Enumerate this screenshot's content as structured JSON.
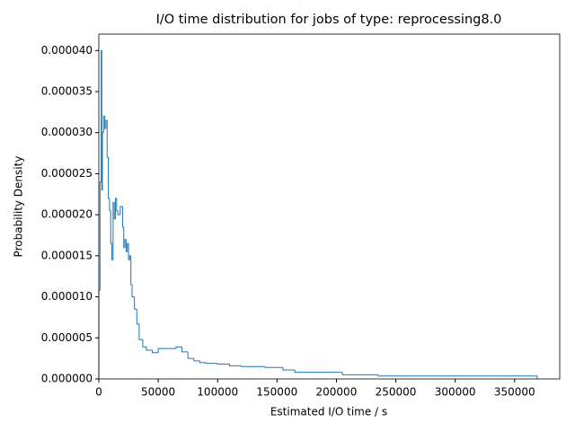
{
  "chart_data": {
    "type": "histogram",
    "title": "I/O time distribution for jobs of type: reprocessing8.0",
    "x_label": "Estimated I/O time / s",
    "y_label": "Probability Density",
    "color": "#1f77b4",
    "bins": [
      0,
      1000,
      2000,
      2500,
      3000,
      4000,
      5000,
      6000,
      7000,
      8000,
      9000,
      10000,
      11000,
      12000,
      13000,
      14000,
      15000,
      16000,
      18000,
      20000,
      21000,
      22000,
      23000,
      24000,
      25000,
      26000,
      27000,
      28000,
      30000,
      32000,
      34000,
      37000,
      40000,
      45000,
      50000,
      55000,
      65000,
      70000,
      75000,
      80000,
      85000,
      90000,
      100000,
      110000,
      120000,
      140000,
      155000,
      165000,
      205000,
      235000,
      369000
    ],
    "values": [
      1.08e-05,
      2.4e-05,
      4e-05,
      2.3e-05,
      3e-05,
      3.2e-05,
      3.05e-05,
      3.15e-05,
      2.7e-05,
      2.2e-05,
      2.05e-05,
      1.65e-05,
      1.45e-05,
      2.15e-05,
      1.95e-05,
      2.2e-05,
      2.05e-05,
      2e-05,
      2.1e-05,
      1.85e-05,
      1.6e-05,
      1.7e-05,
      1.55e-05,
      1.65e-05,
      1.45e-05,
      1.5e-05,
      1.15e-05,
      1e-05,
      8.5e-06,
      6.7e-06,
      4.8e-06,
      3.9e-06,
      3.5e-06,
      3.2e-06,
      3.7e-06,
      3.7e-06,
      3.9e-06,
      3.3e-06,
      2.5e-06,
      2.2e-06,
      2e-06,
      1.9e-06,
      1.8e-06,
      1.6e-06,
      1.5e-06,
      1.4e-06,
      1.1e-06,
      8e-07,
      5e-07,
      3.5e-07
    ],
    "xlim": [
      0,
      388000
    ],
    "ylim": [
      0,
      4.2e-05
    ],
    "xticks": [
      0,
      50000,
      100000,
      150000,
      200000,
      250000,
      300000,
      350000
    ],
    "yticks": [
      {
        "value": 0,
        "label": "0.000000"
      },
      {
        "value": 5e-06,
        "label": "0.000005"
      },
      {
        "value": 1e-05,
        "label": "0.000010"
      },
      {
        "value": 1.5e-05,
        "label": "0.000015"
      },
      {
        "value": 2e-05,
        "label": "0.000020"
      },
      {
        "value": 2.5e-05,
        "label": "0.000025"
      },
      {
        "value": 3e-05,
        "label": "0.000030"
      },
      {
        "value": 3.5e-05,
        "label": "0.000035"
      },
      {
        "value": 4e-05,
        "label": "0.000040"
      }
    ]
  }
}
